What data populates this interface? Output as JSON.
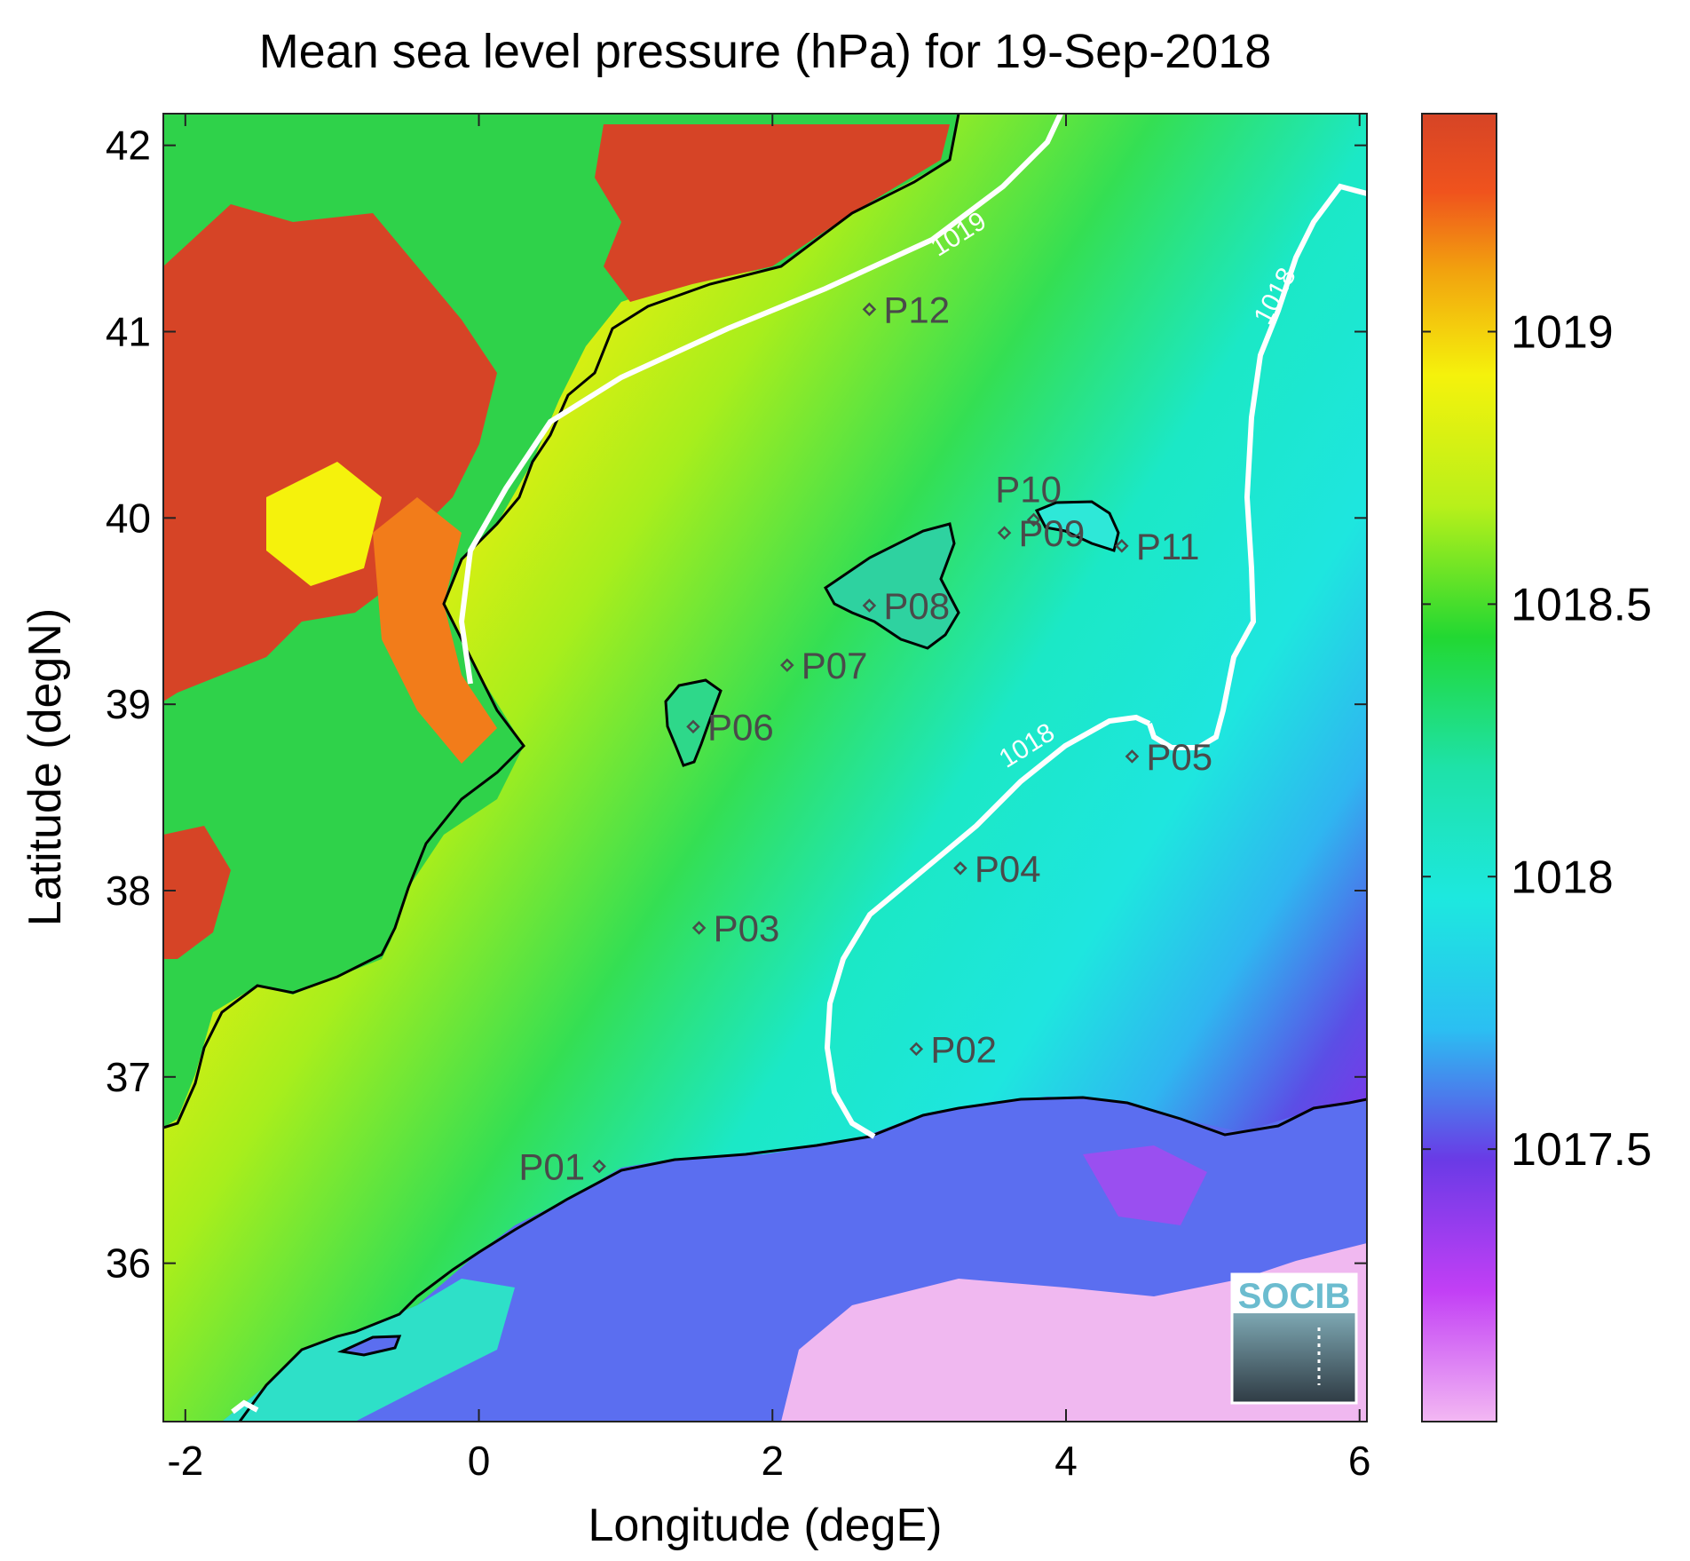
{
  "chart_data": {
    "type": "heatmap",
    "title": "Mean sea level pressure (hPa) for 19-Sep-2018",
    "xlabel": "Longitude (degE)",
    "ylabel": "Latitude (degN)",
    "xlim": [
      -2.15,
      6.05
    ],
    "ylim": [
      35.15,
      42.17
    ],
    "x_ticks": [
      -2,
      0,
      2,
      4,
      6
    ],
    "y_ticks": [
      36,
      37,
      38,
      39,
      40,
      41,
      42
    ],
    "colorbar": {
      "range": [
        1017.0,
        1019.4
      ],
      "ticks": [
        1017.5,
        1018,
        1018.5,
        1019
      ],
      "colormap": [
        "#f3b8f3",
        "#c23ff5",
        "#6a3ae6",
        "#2bbff2",
        "#1de8df",
        "#22d832",
        "#b8f01a",
        "#f5f20c",
        "#f2a20e",
        "#f0531d",
        "#d64426"
      ]
    },
    "contours": [
      {
        "level": 1019,
        "label": "1019"
      },
      {
        "level": 1018,
        "label": "1018"
      },
      {
        "level": 1018,
        "label": "1018"
      }
    ],
    "sites": [
      {
        "name": "P01",
        "lon": 0.82,
        "lat": 36.52
      },
      {
        "name": "P02",
        "lon": 2.98,
        "lat": 37.15
      },
      {
        "name": "P03",
        "lon": 1.5,
        "lat": 37.8
      },
      {
        "name": "P04",
        "lon": 3.28,
        "lat": 38.12
      },
      {
        "name": "P05",
        "lon": 4.45,
        "lat": 38.72
      },
      {
        "name": "P06",
        "lon": 1.46,
        "lat": 38.88
      },
      {
        "name": "P07",
        "lon": 2.1,
        "lat": 39.21
      },
      {
        "name": "P08",
        "lon": 2.66,
        "lat": 39.53
      },
      {
        "name": "P09",
        "lon": 3.58,
        "lat": 39.92
      },
      {
        "name": "P10",
        "lon": 3.78,
        "lat": 39.99
      },
      {
        "name": "P11",
        "lon": 4.38,
        "lat": 39.85
      },
      {
        "name": "P12",
        "lon": 2.66,
        "lat": 41.12
      }
    ],
    "logo": "SOCIB",
    "colors": {
      "contour": "#ffffff",
      "coastline": "#000000",
      "site_marker": "#4a4a4a"
    }
  }
}
